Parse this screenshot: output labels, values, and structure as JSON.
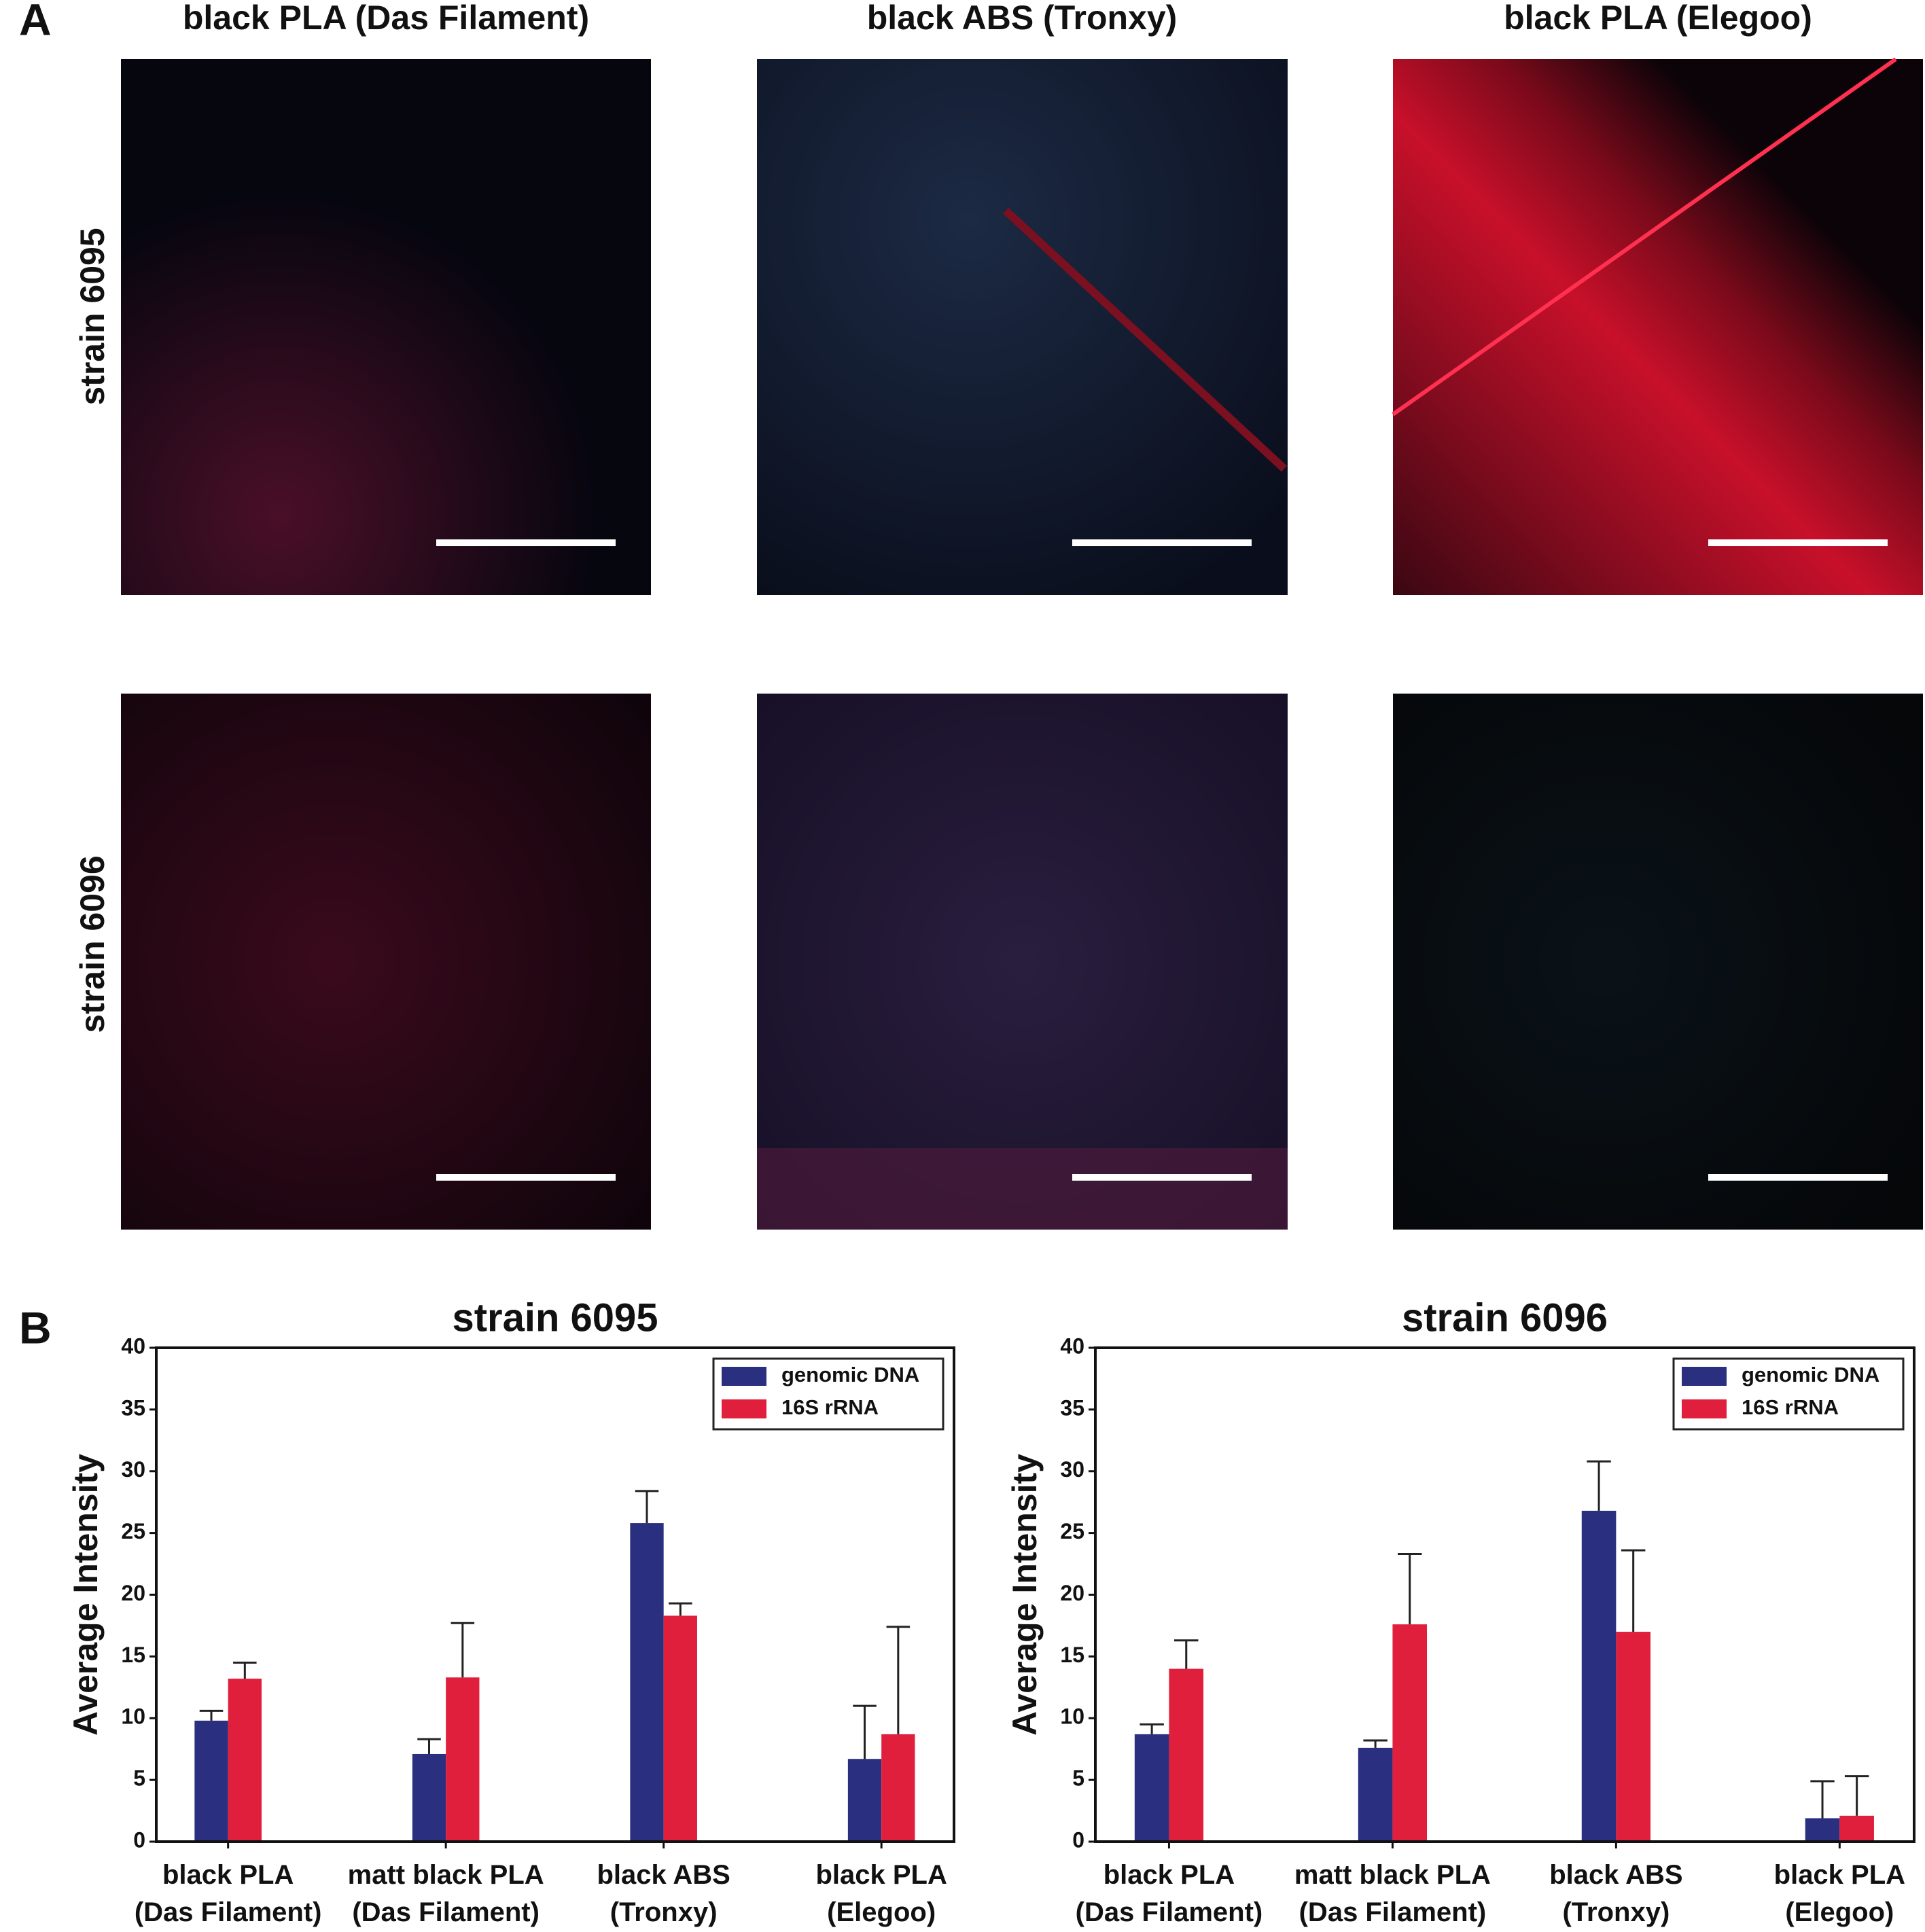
{
  "panel_a": {
    "letter": "A",
    "column_titles": [
      "black PLA (Das Filament)",
      "black ABS (Tronxy)",
      "black PLA (Elegoo)"
    ],
    "row_labels": [
      "strain 6095",
      "strain 6096"
    ]
  },
  "panel_b": {
    "letter": "B"
  },
  "chart_data": [
    {
      "type": "bar",
      "title": "strain 6095",
      "ylabel": "Average Intensity",
      "categories": [
        "black PLA\n(Das Filament)",
        "matt black PLA\n(Das Filament)",
        "black ABS\n(Tronxy)",
        "black PLA\n(Elegoo)"
      ],
      "series": [
        {
          "name": "genomic DNA",
          "color": "#2b2f7f",
          "values": [
            9.8,
            7.1,
            25.8,
            6.7
          ],
          "errors": [
            0.8,
            1.2,
            2.6,
            4.3
          ]
        },
        {
          "name": "16S rRNA",
          "color": "#e01f3d",
          "values": [
            13.2,
            13.3,
            18.3,
            8.7
          ],
          "errors": [
            1.3,
            4.4,
            1.0,
            8.7
          ]
        }
      ],
      "ylim": [
        0,
        40
      ],
      "yticks": [
        0,
        5,
        10,
        15,
        20,
        25,
        30,
        35,
        40
      ],
      "legend": "upper right"
    },
    {
      "type": "bar",
      "title": "strain 6096",
      "ylabel": "Average Intensity",
      "categories": [
        "black PLA\n(Das Filament)",
        "matt black PLA\n(Das Filament)",
        "black ABS\n(Tronxy)",
        "black PLA\n(Elegoo)"
      ],
      "series": [
        {
          "name": "genomic DNA",
          "color": "#2b2f7f",
          "values": [
            8.7,
            7.6,
            26.8,
            1.9
          ],
          "errors": [
            0.8,
            0.6,
            4.0,
            3.0
          ]
        },
        {
          "name": "16S rRNA",
          "color": "#e01f3d",
          "values": [
            14.0,
            17.6,
            17.0,
            2.1
          ],
          "errors": [
            2.3,
            5.7,
            6.6,
            3.2
          ]
        }
      ],
      "ylim": [
        0,
        40
      ],
      "yticks": [
        0,
        5,
        10,
        15,
        20,
        25,
        30,
        35,
        40
      ],
      "legend": "upper right"
    }
  ]
}
